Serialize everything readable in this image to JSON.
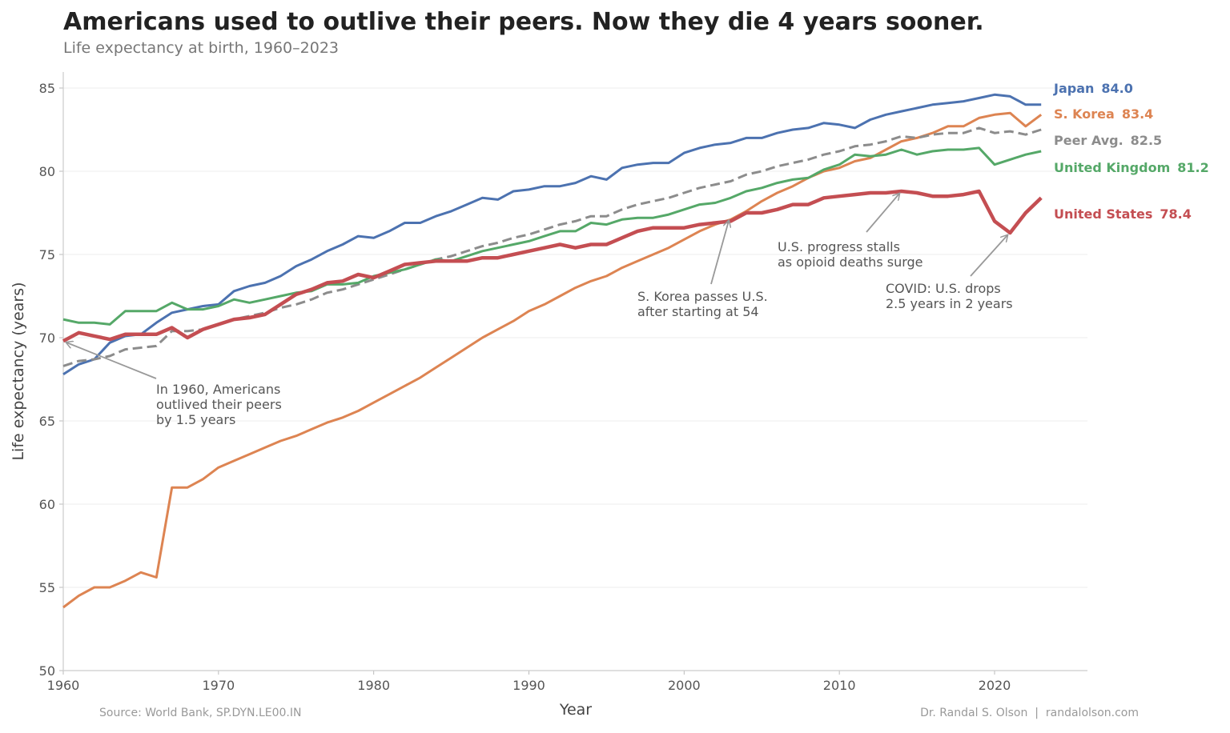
{
  "chart_data": {
    "type": "line",
    "title": "Americans used to outlive their peers. Now they die 4 years sooner.",
    "subtitle": "Life expectancy at birth, 1960–2023",
    "xlabel": "Year",
    "ylabel": "Life expectancy (years)",
    "xlim": [
      1960,
      2026
    ],
    "ylim": [
      50,
      86
    ],
    "xticks": [
      1960,
      1970,
      1980,
      1990,
      2000,
      2010,
      2020
    ],
    "yticks": [
      50,
      55,
      60,
      65,
      70,
      75,
      80,
      85
    ],
    "grid": "horizontal",
    "x_start": 1960,
    "series": [
      {
        "name": "Japan",
        "end_label": "84.0",
        "color": "#4c72b0",
        "style": "solid",
        "width": "normal",
        "values": [
          67.8,
          68.4,
          68.7,
          69.7,
          70.1,
          70.2,
          70.9,
          71.5,
          71.7,
          71.9,
          72.0,
          72.8,
          73.1,
          73.3,
          73.7,
          74.3,
          74.7,
          75.2,
          75.6,
          76.1,
          76.0,
          76.4,
          76.9,
          76.9,
          77.3,
          77.6,
          78.0,
          78.4,
          78.3,
          78.8,
          78.9,
          79.1,
          79.1,
          79.3,
          79.7,
          79.5,
          80.2,
          80.4,
          80.5,
          80.5,
          81.1,
          81.4,
          81.6,
          81.7,
          82.0,
          82.0,
          82.3,
          82.5,
          82.6,
          82.9,
          82.8,
          82.6,
          83.1,
          83.4,
          83.6,
          83.8,
          84.0,
          84.1,
          84.2,
          84.4,
          84.6,
          84.5,
          84.0,
          84.0
        ]
      },
      {
        "name": "S. Korea",
        "end_label": "83.4",
        "color": "#dd8452",
        "style": "solid",
        "width": "normal",
        "values": [
          53.8,
          54.5,
          55.0,
          55.0,
          55.4,
          55.9,
          55.6,
          61.0,
          61.0,
          61.5,
          62.2,
          62.6,
          63.0,
          63.4,
          63.8,
          64.1,
          64.5,
          64.9,
          65.2,
          65.6,
          66.1,
          66.6,
          67.1,
          67.6,
          68.2,
          68.8,
          69.4,
          70.0,
          70.5,
          71.0,
          71.6,
          72.0,
          72.5,
          73.0,
          73.4,
          73.7,
          74.2,
          74.6,
          75.0,
          75.4,
          75.9,
          76.4,
          76.8,
          77.1,
          77.6,
          78.2,
          78.7,
          79.1,
          79.6,
          80.0,
          80.2,
          80.6,
          80.8,
          81.3,
          81.8,
          82.0,
          82.3,
          82.7,
          82.7,
          83.2,
          83.4,
          83.5,
          82.7,
          83.4
        ]
      },
      {
        "name": "Peer Avg.",
        "end_label": "82.5",
        "color": "#8c8c8c",
        "style": "dashed",
        "width": "normal",
        "values": [
          68.3,
          68.6,
          68.7,
          68.9,
          69.3,
          69.4,
          69.5,
          70.4,
          70.4,
          70.5,
          70.8,
          71.1,
          71.3,
          71.5,
          71.8,
          72.0,
          72.3,
          72.7,
          72.9,
          73.2,
          73.5,
          73.8,
          74.1,
          74.4,
          74.7,
          74.9,
          75.2,
          75.5,
          75.7,
          76.0,
          76.2,
          76.5,
          76.8,
          77.0,
          77.3,
          77.3,
          77.7,
          78.0,
          78.2,
          78.4,
          78.7,
          79.0,
          79.2,
          79.4,
          79.8,
          80.0,
          80.3,
          80.5,
          80.7,
          81.0,
          81.2,
          81.5,
          81.6,
          81.8,
          82.1,
          82.0,
          82.2,
          82.3,
          82.3,
          82.6,
          82.3,
          82.4,
          82.2,
          82.5
        ]
      },
      {
        "name": "United Kingdom",
        "end_label": "81.2",
        "color": "#55a868",
        "style": "solid",
        "width": "normal",
        "values": [
          71.1,
          70.9,
          70.9,
          70.8,
          71.6,
          71.6,
          71.6,
          72.1,
          71.7,
          71.7,
          71.9,
          72.3,
          72.1,
          72.3,
          72.5,
          72.7,
          72.8,
          73.2,
          73.2,
          73.3,
          73.7,
          73.9,
          74.1,
          74.4,
          74.7,
          74.6,
          74.9,
          75.2,
          75.4,
          75.6,
          75.8,
          76.1,
          76.4,
          76.4,
          76.9,
          76.8,
          77.1,
          77.2,
          77.2,
          77.4,
          77.7,
          78.0,
          78.1,
          78.4,
          78.8,
          79.0,
          79.3,
          79.5,
          79.6,
          80.1,
          80.4,
          81.0,
          80.9,
          81.0,
          81.3,
          81.0,
          81.2,
          81.3,
          81.3,
          81.4,
          80.4,
          80.7,
          81.0,
          81.2
        ]
      },
      {
        "name": "United States",
        "end_label": "78.4",
        "color": "#c44e52",
        "style": "solid",
        "width": "thick",
        "values": [
          69.8,
          70.3,
          70.1,
          69.9,
          70.2,
          70.2,
          70.2,
          70.6,
          70.0,
          70.5,
          70.8,
          71.1,
          71.2,
          71.4,
          72.0,
          72.6,
          72.9,
          73.3,
          73.4,
          73.8,
          73.6,
          74.0,
          74.4,
          74.5,
          74.6,
          74.6,
          74.6,
          74.8,
          74.8,
          75.0,
          75.2,
          75.4,
          75.6,
          75.4,
          75.6,
          75.6,
          76.0,
          76.4,
          76.6,
          76.6,
          76.6,
          76.8,
          76.9,
          77.0,
          77.5,
          77.5,
          77.7,
          78.0,
          78.0,
          78.4,
          78.5,
          78.6,
          78.7,
          78.7,
          78.8,
          78.7,
          78.5,
          78.5,
          78.6,
          78.8,
          77.0,
          76.3,
          77.5,
          78.4
        ]
      }
    ],
    "annotations": [
      {
        "lines": [
          "In 1960, Americans",
          "outlived their peers",
          "by 1.5 years"
        ]
      },
      {
        "lines": [
          "S. Korea passes U.S.",
          "after starting at 54"
        ]
      },
      {
        "lines": [
          "U.S. progress stalls",
          "as opioid deaths surge"
        ]
      },
      {
        "lines": [
          "COVID: U.S. drops",
          "2.5 years in 2 years"
        ]
      }
    ],
    "source": "Source: World Bank, SP.DYN.LE00.IN",
    "credit": "Dr. Randal S. Olson  |  randalolson.com"
  }
}
